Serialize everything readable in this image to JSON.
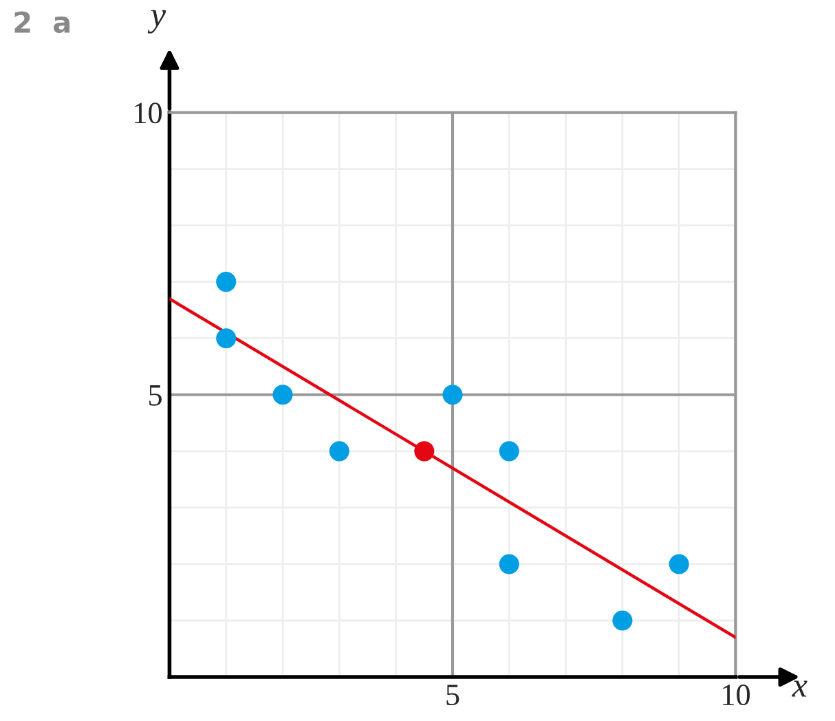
{
  "chart_data": {
    "type": "scatter",
    "xlabel": "x",
    "ylabel": "y",
    "annotations": [
      "2  a"
    ],
    "xlim": [
      0,
      10
    ],
    "ylim": [
      0,
      10
    ],
    "xticks": [
      5,
      10
    ],
    "yticks": [
      5,
      10
    ],
    "grid": true,
    "series": [
      {
        "color": "#009fe3",
        "marker": "circle",
        "x": [
          1,
          1,
          2,
          3,
          5,
          6,
          6,
          8,
          9
        ],
        "values": [
          7,
          6,
          5,
          4,
          5,
          4,
          2,
          1,
          2
        ]
      },
      {
        "color": "#e30613",
        "marker": "circle",
        "x": [
          4.5
        ],
        "values": [
          4
        ]
      },
      {
        "type": "line",
        "color": "#e30613",
        "marker": "none",
        "x": [
          0,
          10
        ],
        "values": [
          6.7,
          0.7
        ]
      }
    ]
  }
}
